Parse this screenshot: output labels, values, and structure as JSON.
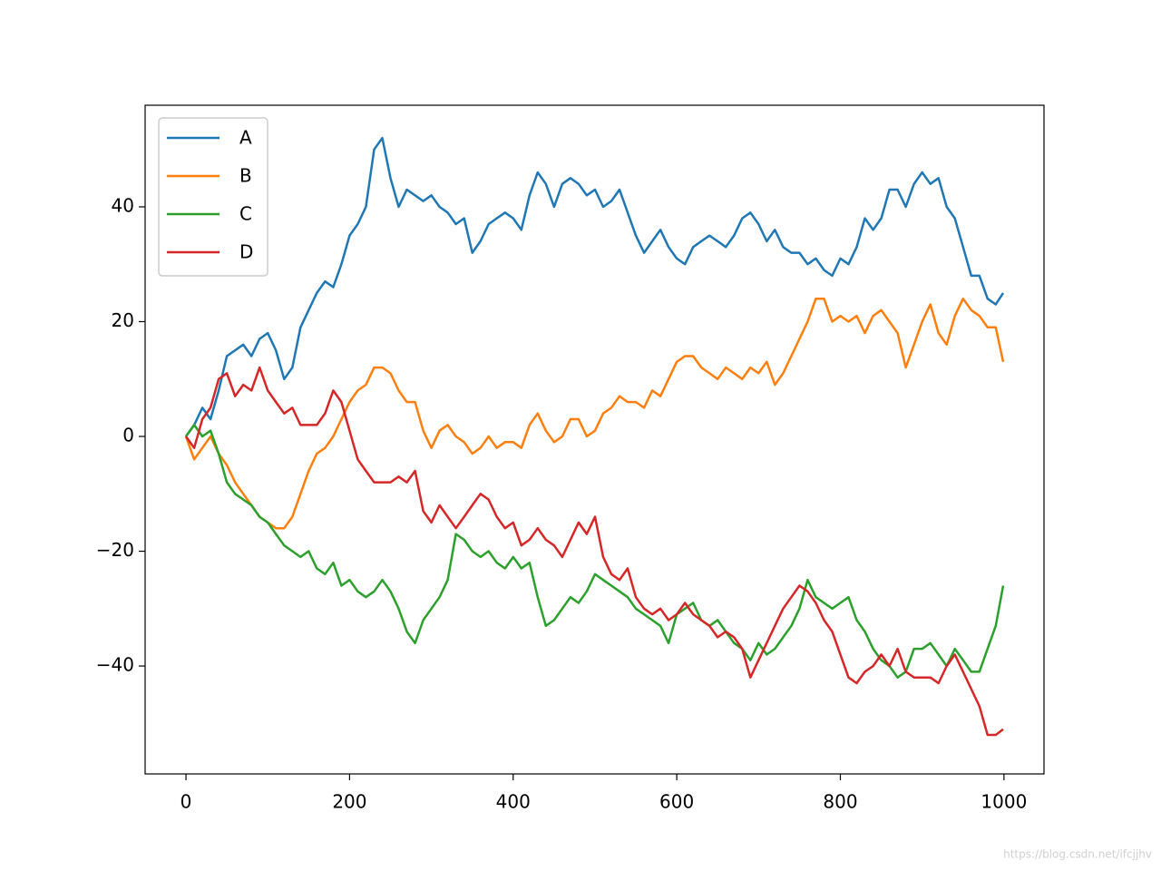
{
  "chart_data": {
    "type": "line",
    "x": [
      0,
      10,
      20,
      30,
      40,
      50,
      60,
      70,
      80,
      90,
      100,
      110,
      120,
      130,
      140,
      150,
      160,
      170,
      180,
      190,
      200,
      210,
      220,
      230,
      240,
      250,
      260,
      270,
      280,
      290,
      300,
      310,
      320,
      330,
      340,
      350,
      360,
      370,
      380,
      390,
      400,
      410,
      420,
      430,
      440,
      450,
      460,
      470,
      480,
      490,
      500,
      510,
      520,
      530,
      540,
      550,
      560,
      570,
      580,
      590,
      600,
      610,
      620,
      630,
      640,
      650,
      660,
      670,
      680,
      690,
      700,
      710,
      720,
      730,
      740,
      750,
      760,
      770,
      780,
      790,
      800,
      810,
      820,
      830,
      840,
      850,
      860,
      870,
      880,
      890,
      900,
      910,
      920,
      930,
      940,
      950,
      960,
      970,
      980,
      990,
      999
    ],
    "series": [
      {
        "name": "A",
        "color": "#1f77b4",
        "values": [
          0,
          2,
          5,
          3,
          8,
          14,
          15,
          16,
          14,
          17,
          18,
          15,
          10,
          12,
          19,
          22,
          25,
          27,
          26,
          30,
          35,
          37,
          40,
          50,
          52,
          45,
          40,
          43,
          42,
          41,
          42,
          40,
          39,
          37,
          38,
          32,
          34,
          37,
          38,
          39,
          38,
          36,
          42,
          46,
          44,
          40,
          44,
          45,
          44,
          42,
          43,
          40,
          41,
          43,
          39,
          35,
          32,
          34,
          36,
          33,
          31,
          30,
          33,
          34,
          35,
          34,
          33,
          35,
          38,
          39,
          37,
          34,
          36,
          33,
          32,
          32,
          30,
          31,
          29,
          28,
          31,
          30,
          33,
          38,
          36,
          38,
          43,
          43,
          40,
          44,
          46,
          44,
          45,
          40,
          38,
          33,
          28,
          28,
          24,
          23,
          25
        ]
      },
      {
        "name": "B",
        "color": "#ff7f0e",
        "values": [
          0,
          -4,
          -2,
          0,
          -3,
          -5,
          -8,
          -10,
          -12,
          -14,
          -15,
          -16,
          -16,
          -14,
          -10,
          -6,
          -3,
          -2,
          0,
          3,
          6,
          8,
          9,
          12,
          12,
          11,
          8,
          6,
          6,
          1,
          -2,
          1,
          2,
          0,
          -1,
          -3,
          -2,
          0,
          -2,
          -1,
          -1,
          -2,
          2,
          4,
          1,
          -1,
          0,
          3,
          3,
          0,
          1,
          4,
          5,
          7,
          6,
          6,
          5,
          8,
          7,
          10,
          13,
          14,
          14,
          12,
          11,
          10,
          12,
          11,
          10,
          12,
          11,
          13,
          9,
          11,
          14,
          17,
          20,
          24,
          24,
          20,
          21,
          20,
          21,
          18,
          21,
          22,
          20,
          18,
          12,
          16,
          20,
          23,
          18,
          16,
          21,
          24,
          22,
          21,
          19,
          19,
          13
        ]
      },
      {
        "name": "C",
        "color": "#2ca02c",
        "values": [
          0,
          2,
          0,
          1,
          -3,
          -8,
          -10,
          -11,
          -12,
          -14,
          -15,
          -17,
          -19,
          -20,
          -21,
          -20,
          -23,
          -24,
          -22,
          -26,
          -25,
          -27,
          -28,
          -27,
          -25,
          -27,
          -30,
          -34,
          -36,
          -32,
          -30,
          -28,
          -25,
          -17,
          -18,
          -20,
          -21,
          -20,
          -22,
          -23,
          -21,
          -23,
          -22,
          -28,
          -33,
          -32,
          -30,
          -28,
          -29,
          -27,
          -24,
          -25,
          -26,
          -27,
          -28,
          -30,
          -31,
          -32,
          -33,
          -36,
          -31,
          -30,
          -29,
          -32,
          -33,
          -32,
          -34,
          -36,
          -37,
          -39,
          -36,
          -38,
          -37,
          -35,
          -33,
          -30,
          -25,
          -28,
          -29,
          -30,
          -29,
          -28,
          -32,
          -34,
          -37,
          -39,
          -40,
          -42,
          -41,
          -37,
          -37,
          -36,
          -38,
          -40,
          -37,
          -39,
          -41,
          -41,
          -37,
          -33,
          -26
        ]
      },
      {
        "name": "D",
        "color": "#d62728",
        "values": [
          0,
          -2,
          3,
          5,
          10,
          11,
          7,
          9,
          8,
          12,
          8,
          6,
          4,
          5,
          2,
          2,
          2,
          4,
          8,
          6,
          1,
          -4,
          -6,
          -8,
          -8,
          -8,
          -7,
          -8,
          -6,
          -13,
          -15,
          -12,
          -14,
          -16,
          -14,
          -12,
          -10,
          -11,
          -14,
          -16,
          -15,
          -19,
          -18,
          -16,
          -18,
          -19,
          -21,
          -18,
          -15,
          -17,
          -14,
          -21,
          -24,
          -25,
          -23,
          -28,
          -30,
          -31,
          -30,
          -32,
          -31,
          -29,
          -31,
          -32,
          -33,
          -35,
          -34,
          -35,
          -37,
          -42,
          -39,
          -36,
          -33,
          -30,
          -28,
          -26,
          -27,
          -29,
          -32,
          -34,
          -38,
          -42,
          -43,
          -41,
          -40,
          -38,
          -40,
          -37,
          -41,
          -42,
          -42,
          -42,
          -43,
          -40,
          -38,
          -41,
          -44,
          -47,
          -52,
          -52,
          -51
        ]
      }
    ],
    "xlim": [
      -49.95,
      1048.95
    ],
    "ylim": [
      -58.8,
      57.7
    ],
    "xticks": [
      0,
      200,
      400,
      600,
      800,
      1000
    ],
    "yticks": [
      {
        "value": -40,
        "label": "−40"
      },
      {
        "value": -20,
        "label": "−20"
      },
      0,
      20,
      40
    ],
    "legend": "upper left",
    "watermark": "https://blog.csdn.net/ifcjjhv"
  }
}
